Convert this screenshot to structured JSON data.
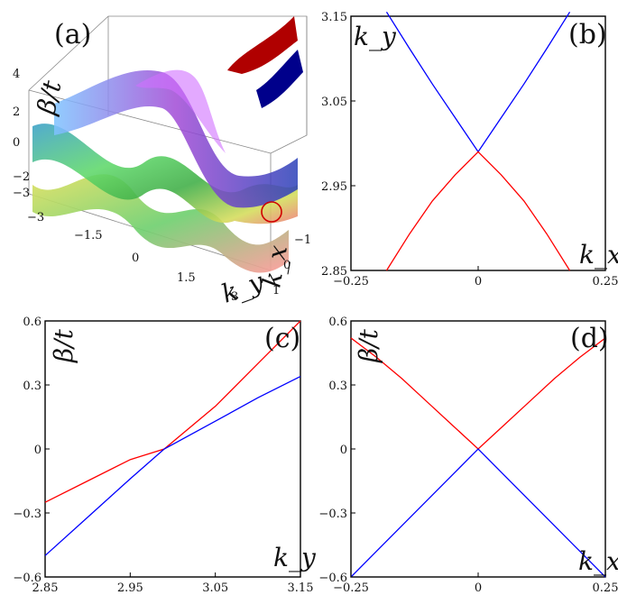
{
  "chart_data": [
    {
      "type": "surface3d",
      "panel_label": "(a)",
      "zlabel": "β/t",
      "xlabel": "k_x",
      "ylabel": "k_y",
      "z_ticks": [
        "4",
        "2",
        "0",
        "−2",
        "−3"
      ],
      "ky_ticks": [
        "−3",
        "−1.5",
        "0",
        "1.5",
        "3"
      ],
      "kx_ticks": [
        "−1",
        "0",
        "1"
      ],
      "colors": {
        "inset_upper": "#b00000",
        "inset_lower": "#00008b",
        "marker": "#d00000"
      }
    },
    {
      "type": "line",
      "panel_label": "(b)",
      "xlabel": "k_x",
      "ylabel": "k_y",
      "xlim": [
        -0.25,
        0.25
      ],
      "ylim": [
        2.85,
        3.15
      ],
      "x_ticks": [
        "−0.25",
        "0",
        "0.25"
      ],
      "y_ticks": [
        "3.15",
        "3.05",
        "2.95",
        "2.85"
      ],
      "series": [
        {
          "color": "#0000ff",
          "x": [
            -0.18,
            -0.135,
            -0.09,
            -0.045,
            0.0,
            0.045,
            0.09,
            0.135,
            0.18
          ],
          "y": [
            3.155,
            3.112,
            3.07,
            3.03,
            2.99,
            3.03,
            3.07,
            3.112,
            3.155
          ]
        },
        {
          "color": "#ff0000",
          "x": [
            -0.18,
            -0.135,
            -0.09,
            -0.045,
            0.0,
            0.045,
            0.09,
            0.135,
            0.18
          ],
          "y": [
            2.85,
            2.893,
            2.932,
            2.963,
            2.99,
            2.963,
            2.932,
            2.893,
            2.85
          ]
        }
      ]
    },
    {
      "type": "line",
      "panel_label": "(c)",
      "xlabel": "k_y",
      "ylabel": "β/t",
      "xlim": [
        2.85,
        3.15
      ],
      "ylim": [
        -0.6,
        0.6
      ],
      "x_ticks": [
        "2.85",
        "2.95",
        "3.05",
        "3.15"
      ],
      "y_ticks": [
        "0.6",
        "0.3",
        "0",
        "−0.3",
        "−0.6"
      ],
      "series": [
        {
          "color": "#ff0000",
          "x": [
            2.85,
            2.9,
            2.95,
            2.99,
            3.05,
            3.1,
            3.15
          ],
          "y": [
            -0.25,
            -0.15,
            -0.05,
            0.0,
            0.2,
            0.4,
            0.6
          ]
        },
        {
          "color": "#0000ff",
          "x": [
            2.85,
            2.9,
            2.95,
            2.99,
            3.05,
            3.1,
            3.15
          ],
          "y": [
            -0.5,
            -0.32,
            -0.14,
            0.0,
            0.13,
            0.24,
            0.34
          ]
        }
      ]
    },
    {
      "type": "line",
      "panel_label": "(d)",
      "xlabel": "k_x",
      "ylabel": "β/t",
      "xlim": [
        -0.25,
        0.25
      ],
      "ylim": [
        -0.6,
        0.6
      ],
      "x_ticks": [
        "−0.25",
        "0",
        "0.25"
      ],
      "y_ticks": [
        "0.6",
        "0.3",
        "0",
        "−0.3",
        "−0.6"
      ],
      "series": [
        {
          "color": "#ff0000",
          "x": [
            -0.25,
            -0.2,
            -0.15,
            -0.1,
            -0.05,
            0.0,
            0.05,
            0.1,
            0.15,
            0.2,
            0.25
          ],
          "y": [
            0.52,
            0.43,
            0.33,
            0.22,
            0.11,
            0.0,
            0.11,
            0.22,
            0.33,
            0.43,
            0.52
          ]
        },
        {
          "color": "#0000ff",
          "x": [
            -0.25,
            -0.2,
            -0.15,
            -0.1,
            -0.05,
            0.0,
            0.05,
            0.1,
            0.15,
            0.2,
            0.25
          ],
          "y": [
            -0.6,
            -0.48,
            -0.36,
            -0.24,
            -0.12,
            0.0,
            -0.12,
            -0.24,
            -0.36,
            -0.48,
            -0.6
          ]
        }
      ]
    }
  ]
}
